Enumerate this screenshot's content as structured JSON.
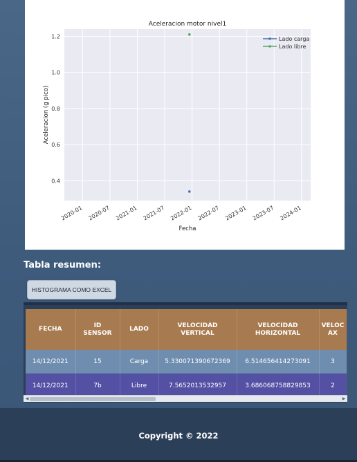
{
  "chart_data": {
    "type": "scatter",
    "title": "Aceleracion motor nivel1",
    "xlabel": "Fecha",
    "ylabel": "Aceleracion (g pico)",
    "x_ticks": [
      "2020-01",
      "2020-07",
      "2021-01",
      "2021-07",
      "2022-01",
      "2022-07",
      "2023-01",
      "2023-07",
      "2024-01"
    ],
    "y_ticks": [
      "0.4",
      "0.6",
      "0.8",
      "1.0",
      "1.2"
    ],
    "ylim": [
      0.29,
      1.24
    ],
    "xlim": [
      "2019-09",
      "2024-03"
    ],
    "grid": true,
    "legend_position": "top-right",
    "series": [
      {
        "name": "Lado carga",
        "color": "#4c72b0",
        "points": [
          {
            "x": "2021-12-14",
            "y": 0.34
          }
        ]
      },
      {
        "name": "Lado libre",
        "color": "#55a868",
        "points": [
          {
            "x": "2021-12-14",
            "y": 1.21
          }
        ]
      }
    ]
  },
  "section_title": "Tabla resumen:",
  "histogram_button": "HISTOGRAMA COMO EXCEL",
  "table": {
    "headers": [
      [
        "FECHA"
      ],
      [
        "ID",
        "SENSOR"
      ],
      [
        "LADO"
      ],
      [
        "VELOCIDAD",
        "VERTICAL"
      ],
      [
        "VELOCIDAD",
        "HORIZONTAL"
      ],
      [
        "VELOC",
        "AX"
      ]
    ],
    "rows": [
      [
        "14/12/2021",
        "15",
        "Carga",
        "5.330071390672369",
        "6.514656414273091",
        "3"
      ],
      [
        "14/12/2021",
        "7b",
        "Libre",
        "7.5652013532957",
        "3.686068758829853",
        "2"
      ]
    ]
  },
  "footer": {
    "copyright": "Copyright © 2022"
  }
}
